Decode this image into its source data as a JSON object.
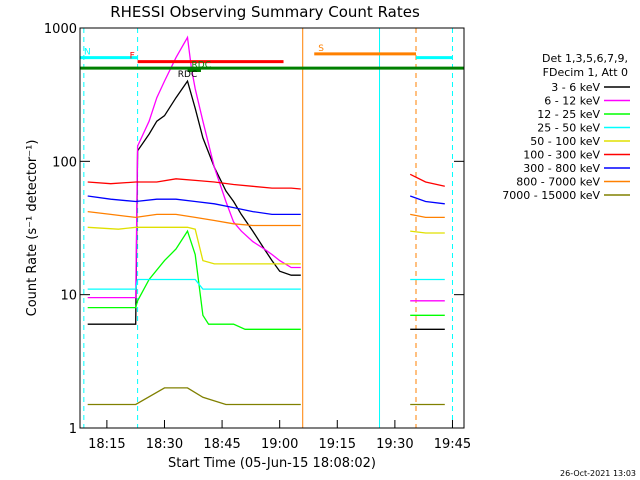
{
  "chart_data": {
    "type": "line",
    "title": "RHESSI Observing Summary Count Rates",
    "xlabel": "Start Time (05-Jun-15 18:08:02)",
    "ylabel": "Count Rate (s⁻¹ detector⁻¹)",
    "yscale": "log",
    "ylim": [
      1,
      1000
    ],
    "xlim": [
      0,
      100
    ],
    "x_ticks": [
      {
        "label": "18:15",
        "x": 7
      },
      {
        "label": "18:30",
        "x": 22
      },
      {
        "label": "18:45",
        "x": 37
      },
      {
        "label": "19:00",
        "x": 52
      },
      {
        "label": "19:15",
        "x": 67
      },
      {
        "label": "19:30",
        "x": 82
      },
      {
        "label": "19:45",
        "x": 97
      }
    ],
    "y_ticks": [
      {
        "label": "1",
        "y": 1
      },
      {
        "label": "10",
        "y": 10
      },
      {
        "label": "100",
        "y": 100
      },
      {
        "label": "1000",
        "y": 1000
      }
    ],
    "legend_header": [
      "Det 1,3,5,6,7,9,",
      "FDecim 1, Att 0"
    ],
    "series": [
      {
        "name": "3 - 6 keV",
        "color": "#000000",
        "x": [
          2,
          10,
          14.5,
          15,
          18,
          20,
          22,
          25,
          28,
          30,
          32,
          35,
          38,
          40,
          42,
          45,
          48,
          50,
          52,
          55,
          57.5,
          86,
          90,
          95
        ],
        "y": [
          6,
          6,
          6,
          120,
          160,
          200,
          220,
          300,
          400,
          250,
          150,
          90,
          60,
          50,
          40,
          30,
          22,
          18,
          15,
          14,
          14,
          5.5,
          5.5,
          5.5
        ]
      },
      {
        "name": "6 - 12 keV",
        "color": "#ff00ff",
        "x": [
          2,
          10,
          14.5,
          15,
          18,
          20,
          22,
          25,
          28,
          29,
          30,
          32,
          35,
          38,
          40,
          42,
          45,
          48,
          50,
          52,
          55,
          57.5,
          86,
          90,
          95
        ],
        "y": [
          9.5,
          9.5,
          9.5,
          130,
          200,
          300,
          400,
          600,
          850,
          500,
          350,
          200,
          90,
          50,
          35,
          30,
          25,
          22,
          20,
          18,
          16,
          16,
          9,
          9,
          9
        ]
      },
      {
        "name": "12 - 25 keV",
        "color": "#00ff00",
        "x": [
          2,
          10,
          14.5,
          15,
          18,
          22,
          25,
          28,
          30,
          32,
          33.5,
          35,
          38,
          40,
          43,
          46,
          50,
          55,
          57.5,
          86,
          90,
          95
        ],
        "y": [
          8,
          8,
          8,
          9,
          13,
          18,
          22,
          30,
          20,
          7,
          6,
          6,
          6,
          6,
          5.5,
          5.5,
          5.5,
          5.5,
          5.5,
          7,
          7,
          7
        ]
      },
      {
        "name": "25 - 50 keV",
        "color": "#00ffff",
        "x": [
          2,
          10,
          14.5,
          15,
          22,
          28,
          30,
          32,
          34,
          38,
          42,
          46,
          50,
          55,
          57.5,
          86,
          90,
          95
        ],
        "y": [
          11,
          11,
          11,
          13,
          13,
          13,
          13,
          11,
          11,
          11,
          11,
          11,
          11,
          11,
          11,
          13,
          13,
          13
        ]
      },
      {
        "name": "50 - 100 keV",
        "color": "#e0e000",
        "x": [
          2,
          10,
          14.5,
          22,
          28,
          30,
          32,
          35,
          38,
          42,
          46,
          50,
          55,
          57.5,
          86,
          90,
          95
        ],
        "y": [
          32,
          31,
          32,
          32,
          32,
          31,
          18,
          17,
          17,
          17,
          17,
          17,
          17,
          17,
          30,
          29,
          29
        ]
      },
      {
        "name": "100 - 300 keV",
        "color": "#ff0000",
        "x": [
          2,
          8,
          14.5,
          20,
          25,
          30,
          35,
          40,
          45,
          50,
          55,
          57.5,
          86,
          90,
          95
        ],
        "y": [
          70,
          68,
          70,
          70,
          74,
          72,
          70,
          67,
          65,
          63,
          63,
          62,
          80,
          70,
          65
        ]
      },
      {
        "name": "300 - 800 keV",
        "color": "#0000ff",
        "x": [
          2,
          8,
          14.5,
          20,
          25,
          30,
          35,
          40,
          45,
          50,
          55,
          57.5,
          86,
          90,
          95
        ],
        "y": [
          55,
          52,
          50,
          52,
          52,
          50,
          48,
          45,
          42,
          40,
          40,
          40,
          55,
          50,
          48
        ]
      },
      {
        "name": "800 - 7000 keV",
        "color": "#ff8000",
        "x": [
          2,
          8,
          14.5,
          20,
          25,
          30,
          35,
          40,
          45,
          50,
          55,
          57.5,
          86,
          90,
          95
        ],
        "y": [
          42,
          40,
          38,
          40,
          40,
          38,
          36,
          34,
          33,
          33,
          33,
          33,
          40,
          38,
          38
        ]
      },
      {
        "name": "7000 - 15000 keV",
        "color": "#808000",
        "x": [
          2,
          10,
          14.5,
          22,
          28,
          32,
          38,
          45,
          50,
          57.5,
          86,
          90,
          95
        ],
        "y": [
          1.5,
          1.5,
          1.5,
          2,
          2,
          1.7,
          1.5,
          1.5,
          1.5,
          1.5,
          1.5,
          1.5,
          1.5
        ]
      }
    ],
    "annotations": {
      "flags": [
        {
          "label": "N",
          "color": "#00ffff",
          "y": 600,
          "segments": [
            [
              0,
              15
            ],
            [
              87.5,
              97
            ]
          ]
        },
        {
          "label": "F",
          "color": "#ff0000",
          "y": 560,
          "segments": [
            [
              15,
              53
            ]
          ]
        },
        {
          "label": "S",
          "color": "#ff8000",
          "y": 640,
          "segments": [
            [
              61,
              87.5
            ]
          ]
        },
        {
          "label": "RDC",
          "color": "#008000",
          "y": 480,
          "segments": [
            [
              28,
              31.5
            ]
          ]
        },
        {
          "label": "",
          "color": "#008000",
          "y": 500,
          "segments": [
            [
              0,
              100
            ]
          ]
        }
      ],
      "vertical_lines": [
        {
          "x": 1,
          "color": "#00ffff",
          "style": "dashed"
        },
        {
          "x": 15,
          "color": "#00ffff",
          "style": "dashed"
        },
        {
          "x": 58,
          "color": "#ff8000",
          "style": "solid"
        },
        {
          "x": 78,
          "color": "#00ffff",
          "style": "solid"
        },
        {
          "x": 87.5,
          "color": "#ff8000",
          "style": "dashed"
        },
        {
          "x": 97,
          "color": "#00ffff",
          "style": "dashed"
        }
      ],
      "text_markers": [
        {
          "label": "RDC",
          "x": 28,
          "y": 430
        }
      ]
    },
    "timestamp": "26-Oct-2021 13:03"
  }
}
